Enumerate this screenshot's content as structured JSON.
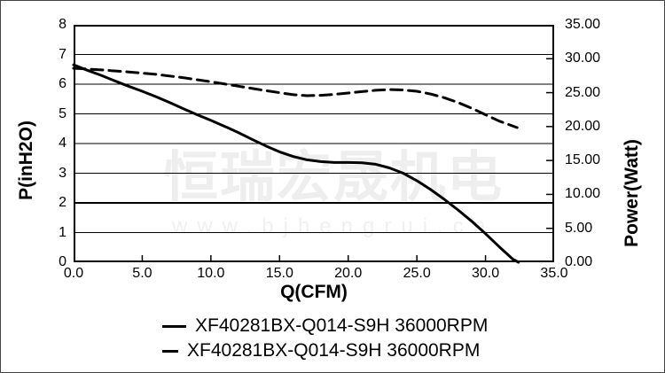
{
  "watermark": {
    "line1": "恒瑞宏晟机电",
    "line2": "www.bjhengrui.cn"
  },
  "axes": {
    "left_title": "P(inH2O)",
    "right_title": "Power(Watt)",
    "x_title": "Q(CFM)",
    "left_ticks": [
      "8",
      "7",
      "6",
      "5",
      "4",
      "3",
      "2",
      "1",
      "0"
    ],
    "right_ticks": [
      "35.00",
      "30.00",
      "25.00",
      "20.00",
      "15.00",
      "10.00",
      "5.00",
      "0.00"
    ],
    "x_ticks": [
      "0.0",
      "5.0",
      "10.0",
      "15.0",
      "20.0",
      "25.0",
      "30.0",
      "35.0"
    ]
  },
  "legend": {
    "position": "bottom",
    "items": [
      {
        "style": "solid",
        "label": "XF40281BX-Q014-S9H 36000RPM"
      },
      {
        "style": "dashed",
        "label": "XF40281BX-Q014-S9H 36000RPM"
      }
    ]
  },
  "colors": {
    "line": "#000000",
    "grid": "#000000",
    "watermark": "#efefef",
    "background": "#ffffff"
  },
  "chart_data": {
    "type": "line",
    "title": "",
    "xlabel": "Q(CFM)",
    "ylabel_left": "P(inH2O)",
    "ylabel_right": "Power(Watt)",
    "x_range": [
      0,
      35
    ],
    "y_left_range": [
      0,
      8
    ],
    "y_right_range": [
      0,
      35
    ],
    "x_tick_step": 5,
    "y_left_tick_step": 1,
    "y_right_tick_step": 5,
    "grid": "horizontal",
    "series": [
      {
        "name": "XF40281BX-Q014-S9H 36000RPM",
        "axis": "left",
        "style": "solid",
        "points": [
          [
            0,
            6.65
          ],
          [
            1,
            6.47
          ],
          [
            2,
            6.3
          ],
          [
            3,
            6.11
          ],
          [
            4,
            5.93
          ],
          [
            5,
            5.76
          ],
          [
            6,
            5.58
          ],
          [
            7,
            5.38
          ],
          [
            8,
            5.17
          ],
          [
            9,
            4.97
          ],
          [
            10,
            4.78
          ],
          [
            11,
            4.58
          ],
          [
            12,
            4.37
          ],
          [
            13,
            4.14
          ],
          [
            14,
            3.92
          ],
          [
            15,
            3.72
          ],
          [
            16,
            3.56
          ],
          [
            17,
            3.45
          ],
          [
            18,
            3.39
          ],
          [
            19,
            3.36
          ],
          [
            20,
            3.36
          ],
          [
            21,
            3.35
          ],
          [
            22,
            3.3
          ],
          [
            23,
            3.18
          ],
          [
            24,
            3.0
          ],
          [
            25,
            2.75
          ],
          [
            26,
            2.45
          ],
          [
            27,
            2.12
          ],
          [
            28,
            1.76
          ],
          [
            29,
            1.38
          ],
          [
            30,
            0.96
          ],
          [
            31,
            0.52
          ],
          [
            32,
            0.1
          ],
          [
            32.4,
            0
          ]
        ]
      },
      {
        "name": "XF40281BX-Q014-S9H 36000RPM",
        "axis": "right",
        "style": "dashed",
        "points": [
          [
            0,
            28.6
          ],
          [
            2,
            28.35
          ],
          [
            4,
            28.05
          ],
          [
            6,
            27.7
          ],
          [
            8,
            27.2
          ],
          [
            10,
            26.6
          ],
          [
            12,
            25.95
          ],
          [
            14,
            25.3
          ],
          [
            15,
            25.0
          ],
          [
            16,
            24.7
          ],
          [
            17,
            24.55
          ],
          [
            18,
            24.6
          ],
          [
            19,
            24.75
          ],
          [
            20,
            24.95
          ],
          [
            21,
            25.15
          ],
          [
            22,
            25.35
          ],
          [
            23,
            25.45
          ],
          [
            24,
            25.4
          ],
          [
            25,
            25.2
          ],
          [
            26,
            24.8
          ],
          [
            27,
            24.25
          ],
          [
            28,
            23.55
          ],
          [
            29,
            22.7
          ],
          [
            30,
            21.75
          ],
          [
            31,
            20.8
          ],
          [
            32.3,
            19.85
          ]
        ]
      }
    ]
  }
}
